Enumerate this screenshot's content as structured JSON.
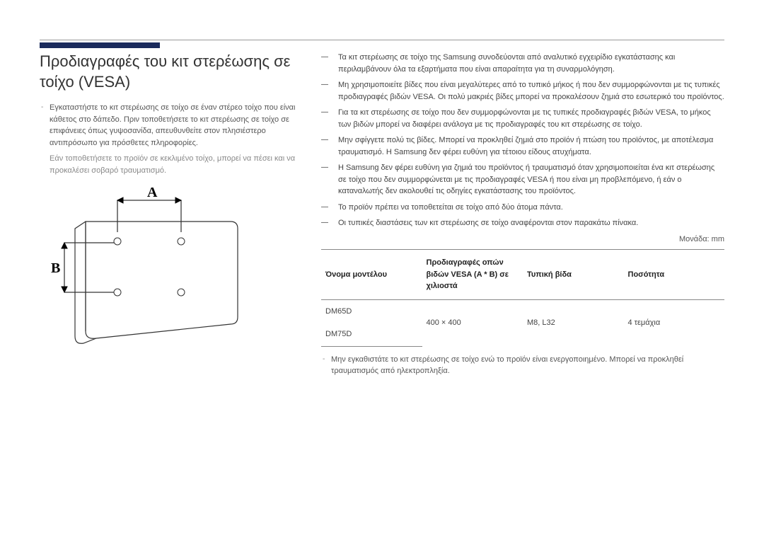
{
  "accent_color": "#1a2a5c",
  "heading": "Προδιαγραφές του κιτ στερέωσης σε τοίχο (VESA)",
  "left_bullet": "Εγκαταστήστε το κιτ στερέωσης σε τοίχο σε έναν στέρεο τοίχο που είναι κάθετος στο δάπεδο. Πριν τοποθετήσετε το κιτ στερέωσης σε τοίχο σε επιφάνειες όπως γυψοσανίδα, απευθυνθείτε στον πλησιέστερο αντιπρόσωπο για πρόσθετες πληροφορίες.",
  "left_warning": "Εάν τοποθετήσετε το προϊόν σε κεκλιμένο τοίχο, μπορεί να πέσει και να προκαλέσει σοβαρό τραυματισμό.",
  "diagram": {
    "label_a": "A",
    "label_b": "B"
  },
  "notes": [
    "Τα κιτ στερέωσης σε τοίχο της Samsung συνοδεύονται από αναλυτικό εγχειρίδιο εγκατάστασης και περιλαμβάνουν όλα τα εξαρτήματα που είναι απαραίτητα για τη συναρμολόγηση.",
    "Μη χρησιμοποιείτε βίδες που είναι μεγαλύτερες από το τυπικό μήκος ή που δεν συμμορφώνονται με τις τυπικές προδιαγραφές βιδών VESA. Οι πολύ μακριές βίδες μπορεί να προκαλέσουν ζημιά στο εσωτερικό του προϊόντος.",
    "Για τα κιτ στερέωσης σε τοίχο που δεν συμμορφώνονται με τις τυπικές προδιαγραφές βιδών VESA, το μήκος των βιδών μπορεί να διαφέρει ανάλογα με τις προδιαγραφές του κιτ στερέωσης σε τοίχο.",
    "Μην σφίγγετε πολύ τις βίδες. Μπορεί να προκληθεί ζημιά στο προϊόν ή πτώση του προϊόντος, με αποτέλεσμα τραυματισμό. Η Samsung δεν φέρει ευθύνη για τέτοιου είδους ατυχήματα.",
    "Η Samsung δεν φέρει ευθύνη για ζημιά του προϊόντος ή τραυματισμό όταν χρησιμοποιείται ένα κιτ στερέωσης σε τοίχο που δεν συμμορφώνεται με τις προδιαγραφές VESA ή που είναι μη προβλεπόμενο, ή εάν ο καταναλωτής δεν ακολουθεί τις οδηγίες εγκατάστασης του προϊόντος.",
    "Το προϊόν πρέπει να τοποθετείται σε τοίχο από δύο άτομα πάντα.",
    "Οι τυπικές διαστάσεις των κιτ στερέωσης σε τοίχο αναφέρονται στον παρακάτω πίνακα."
  ],
  "note_tag": "―",
  "unit_label": "Μονάδα: mm",
  "table": {
    "headers": {
      "model": "Όνομα μοντέλου",
      "vesa": "Προδιαγραφές οπών βιδών VESA (A * B) σε χιλιοστά",
      "screw": "Τυπική βίδα",
      "qty": "Ποσότητα"
    },
    "rows": [
      {
        "model": "DM65D",
        "vesa": "400 × 400",
        "screw": "M8, L32",
        "qty": "4 τεμάχια"
      },
      {
        "model": "DM75D",
        "vesa": "",
        "screw": "",
        "qty": ""
      }
    ]
  },
  "final_note": "Μην εγκαθιστάτε το κιτ στερέωσης σε τοίχο ενώ το προϊόν είναι ενεργοποιημένο. Μπορεί να προκληθεί τραυματισμός από ηλεκτροπληξία."
}
